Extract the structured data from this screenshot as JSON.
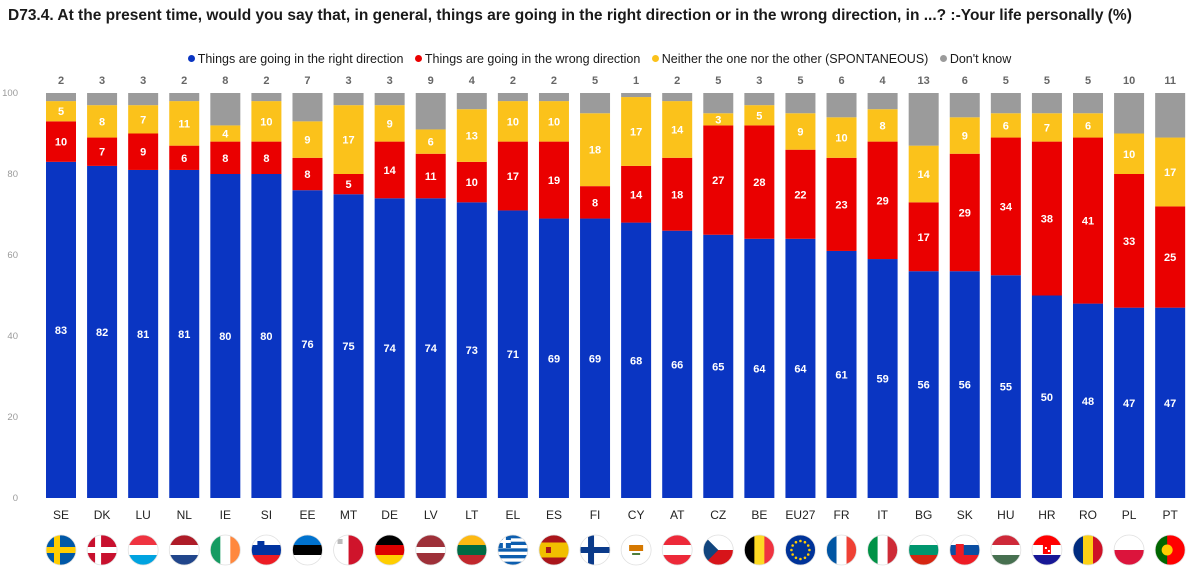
{
  "title": "D73.4. At the present time, would you say that, in general, things are going in the right direction or in the wrong direction, in ...? :-Your life personally (%)",
  "colors": {
    "right": "#0a35c2",
    "wrong": "#ea0000",
    "neither": "#fbc21b",
    "dontknow": "#9b9b9b"
  },
  "chart_data": {
    "type": "bar",
    "stacked": true,
    "categories": [
      "SE",
      "DK",
      "LU",
      "NL",
      "IE",
      "SI",
      "EE",
      "MT",
      "DE",
      "LV",
      "LT",
      "EL",
      "ES",
      "FI",
      "CY",
      "AT",
      "CZ",
      "BE",
      "EU27",
      "FR",
      "IT",
      "BG",
      "SK",
      "HU",
      "HR",
      "RO",
      "PL",
      "PT"
    ],
    "series": [
      {
        "name": "Things are going in the right direction",
        "key": "right",
        "values": [
          83,
          82,
          81,
          81,
          80,
          80,
          76,
          75,
          74,
          74,
          73,
          71,
          69,
          69,
          68,
          66,
          65,
          64,
          64,
          61,
          59,
          56,
          56,
          55,
          50,
          48,
          47,
          47
        ]
      },
      {
        "name": "Things are going in the wrong direction",
        "key": "wrong",
        "values": [
          10,
          7,
          9,
          6,
          8,
          8,
          8,
          5,
          14,
          11,
          10,
          17,
          19,
          8,
          14,
          18,
          27,
          28,
          22,
          23,
          29,
          17,
          29,
          34,
          38,
          41,
          33,
          25
        ]
      },
      {
        "name": "Neither the one nor the other (SPONTANEOUS)",
        "key": "neither",
        "values": [
          5,
          8,
          7,
          11,
          4,
          10,
          9,
          17,
          9,
          6,
          13,
          10,
          10,
          18,
          17,
          14,
          3,
          5,
          9,
          10,
          8,
          14,
          9,
          6,
          7,
          6,
          10,
          17
        ]
      },
      {
        "name": "Don't know",
        "key": "dontknow",
        "values": [
          2,
          3,
          3,
          2,
          8,
          2,
          7,
          3,
          3,
          9,
          4,
          2,
          2,
          5,
          1,
          2,
          5,
          3,
          5,
          6,
          4,
          13,
          6,
          5,
          5,
          5,
          10,
          11
        ]
      }
    ],
    "yticks": [
      0,
      20,
      40,
      60,
      80,
      100
    ],
    "ylim": [
      0,
      100
    ],
    "legend_position": "top-center",
    "grid": false
  },
  "flags": [
    "SE",
    "DK",
    "LU",
    "NL",
    "IE",
    "SI",
    "EE",
    "MT",
    "DE",
    "LV",
    "LT",
    "EL",
    "ES",
    "FI",
    "CY",
    "AT",
    "CZ",
    "BE",
    "EU27",
    "FR",
    "IT",
    "BG",
    "SK",
    "HU",
    "HR",
    "RO",
    "PL",
    "PT"
  ]
}
